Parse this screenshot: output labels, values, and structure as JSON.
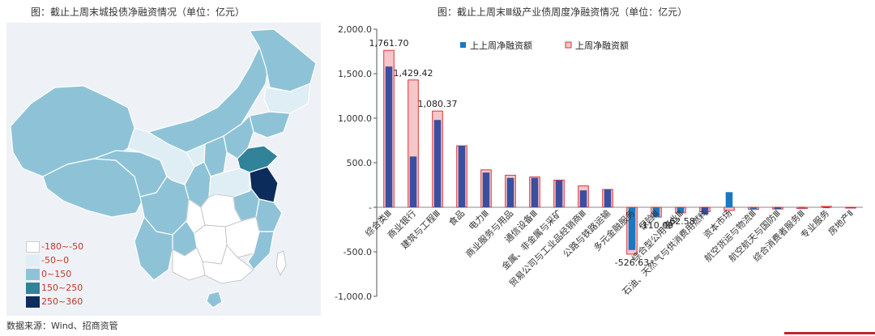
{
  "map": {
    "title": "图：截止上周末城投债净融资情况（单位：亿元）",
    "legend": [
      {
        "label": "-180~-50",
        "color": "#ffffff"
      },
      {
        "label": "-50~0",
        "color": "#deeef4"
      },
      {
        "label": "0~150",
        "color": "#8ec3d7"
      },
      {
        "label": "150~250",
        "color": "#31839a"
      },
      {
        "label": "250~360",
        "color": "#0c2c5c"
      }
    ],
    "source": "数据来源：Wind、招商资管"
  },
  "chart_data": {
    "type": "bar",
    "title": "图：截止上周末Ⅲ级产业债周度净融资情况（单位：亿元）",
    "ylim": [
      -1000,
      2000
    ],
    "yticks": [
      "-1,000.0",
      "-500.0",
      "-",
      "500.0",
      "1,000.0",
      "1,500.0",
      "2,000.0"
    ],
    "categories": [
      "综合类Ⅲ",
      "商业银行",
      "建筑与工程Ⅲ",
      "食品",
      "电力Ⅲ",
      "商业服务与用品",
      "通信设备Ⅲ",
      "金属、非金属与采矿",
      "贸易公司与工业品经销商Ⅲ",
      "公路与铁路运输",
      "多元金融服务",
      "保险Ⅲ",
      "综合型公用事业Ⅲ",
      "石油、天然气与供消费用燃料",
      "资本市场",
      "航空货运与物流Ⅲ",
      "航空航天与国防Ⅲ",
      "综合消费者服务Ⅲ",
      "专业服务",
      "房地产Ⅱ"
    ],
    "series": [
      {
        "name": "上上周净融资额",
        "color": "#3a4f9f",
        "values": [
          1580,
          570,
          980,
          690,
          390,
          330,
          330,
          300,
          190,
          200,
          -480,
          -110,
          -60,
          -80,
          170,
          -20,
          -20,
          -10,
          -10,
          -5
        ]
      },
      {
        "name": "上周净融资额",
        "color": "#f7c6c8",
        "values": [
          1761.7,
          1429.42,
          1080.37,
          690,
          420,
          360,
          340,
          305,
          240,
          200,
          -526.63,
          -110.09,
          -62.58,
          -50,
          -35,
          -25,
          -20,
          -15,
          10,
          -5
        ]
      }
    ],
    "data_labels": [
      {
        "index": 0,
        "text": "1,761.70"
      },
      {
        "index": 1,
        "text": "1,429.42"
      },
      {
        "index": 2,
        "text": "1,080.37"
      },
      {
        "index": 10,
        "text": "-526.63"
      },
      {
        "index": 11,
        "text": "-110.09"
      },
      {
        "index": 12,
        "text": "-62.58"
      }
    ],
    "legend_position": "top"
  }
}
